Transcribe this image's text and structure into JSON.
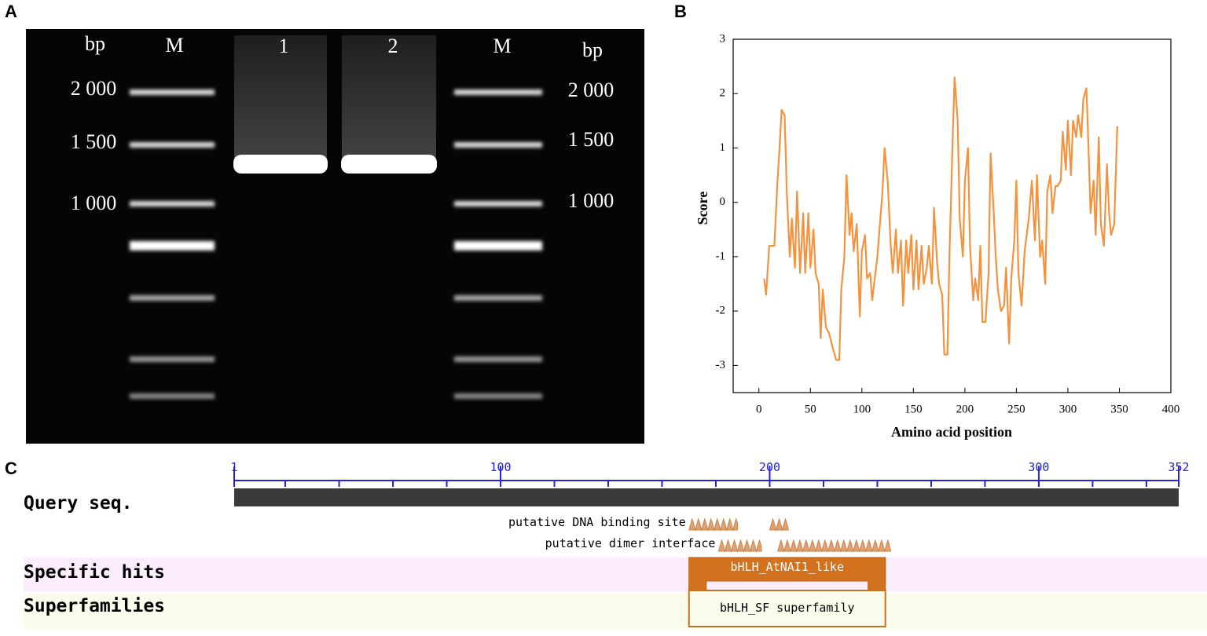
{
  "panel_labels": [
    "A",
    "B",
    "C"
  ],
  "gel": {
    "left_unit": "bp",
    "right_unit": "bp",
    "lanes": [
      "M",
      "1",
      "2",
      "M"
    ],
    "left_sizes": [
      "2 000",
      "1 500",
      "1 000"
    ],
    "right_sizes": [
      "2 000",
      "1 500",
      "1 000"
    ]
  },
  "chart_data": {
    "type": "line",
    "xlabel": "Amino acid position",
    "ylabel": "Score",
    "color": "#f5923e",
    "xlim": [
      -25,
      400
    ],
    "xticks": [
      0,
      50,
      100,
      150,
      200,
      250,
      300,
      350,
      400
    ],
    "ylim": [
      -3.5,
      3
    ],
    "yticks": [
      -3,
      -2,
      -1,
      0,
      1,
      2,
      3
    ],
    "x": [
      5,
      7,
      10,
      15,
      18,
      20,
      22,
      25,
      27,
      30,
      32,
      35,
      37,
      40,
      43,
      45,
      48,
      50,
      53,
      55,
      58,
      60,
      62,
      65,
      68,
      72,
      75,
      78,
      80,
      83,
      85,
      88,
      90,
      92,
      95,
      98,
      100,
      103,
      105,
      108,
      110,
      115,
      120,
      122,
      125,
      128,
      130,
      133,
      135,
      138,
      140,
      143,
      145,
      148,
      150,
      153,
      155,
      158,
      160,
      163,
      165,
      168,
      170,
      173,
      175,
      178,
      180,
      183,
      185,
      188,
      190,
      193,
      195,
      198,
      200,
      203,
      205,
      208,
      210,
      213,
      215,
      217,
      220,
      223,
      225,
      228,
      230,
      232,
      235,
      238,
      240,
      243,
      245,
      248,
      250,
      252,
      255,
      258,
      262,
      265,
      268,
      270,
      273,
      275,
      278,
      280,
      283,
      285,
      288,
      290,
      293,
      295,
      298,
      300,
      303,
      305,
      308,
      310,
      313,
      315,
      318,
      320,
      322,
      325,
      327,
      330,
      332,
      335,
      338,
      340,
      342,
      345,
      348
    ],
    "values": [
      -1.4,
      -1.7,
      -0.8,
      -0.8,
      0.4,
      1.0,
      1.7,
      1.6,
      0.2,
      -1.0,
      -0.3,
      -1.2,
      0.2,
      -1.3,
      -0.2,
      -1.3,
      -0.2,
      -1.2,
      -0.5,
      -1.3,
      -1.5,
      -2.5,
      -1.6,
      -2.3,
      -2.4,
      -2.7,
      -2.9,
      -2.9,
      -1.6,
      -1.0,
      0.5,
      -0.6,
      -0.2,
      -0.9,
      -0.4,
      -2.1,
      -0.9,
      -0.6,
      -1.4,
      -1.3,
      -1.8,
      -1.0,
      0.2,
      1.0,
      0.4,
      -0.8,
      -1.3,
      -0.5,
      -1.3,
      -0.7,
      -1.9,
      -0.7,
      -1.3,
      -0.6,
      -1.6,
      -0.7,
      -1.6,
      -0.8,
      -1.5,
      -1.2,
      -0.8,
      -1.5,
      -0.1,
      -1.1,
      -1.5,
      -1.7,
      -2.8,
      -2.8,
      -1.0,
      1.1,
      2.3,
      1.5,
      -0.3,
      -1.0,
      0.4,
      1.0,
      -0.8,
      -1.8,
      -1.4,
      -1.8,
      -0.8,
      -2.2,
      -2.2,
      -1.3,
      0.9,
      -0.2,
      -1.0,
      -1.6,
      -2.0,
      -1.9,
      -1.2,
      -2.6,
      -1.4,
      -0.7,
      0.4,
      -1.3,
      -1.9,
      -0.9,
      -0.3,
      0.4,
      -0.7,
      0.5,
      -1.0,
      -0.7,
      -1.5,
      0.2,
      0.5,
      -0.2,
      0.3,
      0.3,
      0.4,
      1.3,
      0.6,
      1.5,
      0.5,
      1.5,
      1.2,
      1.6,
      1.2,
      1.9,
      2.1,
      1.0,
      -0.2,
      0.4,
      -0.6,
      1.2,
      -0.4,
      -0.8,
      0.7,
      -0.2,
      -0.6,
      -0.4,
      1.4
    ]
  },
  "domain_map": {
    "range": [
      1,
      352
    ],
    "ticks": [
      1,
      100,
      200,
      300,
      352
    ],
    "minor_tick_step": 20,
    "query_label": "Query seq.",
    "features": [
      {
        "name": "putative DNA binding site",
        "ranges": [
          [
            170,
            188
          ],
          [
            200,
            207
          ]
        ]
      },
      {
        "name": "putative dimer interface",
        "ranges": [
          [
            181,
            197
          ],
          [
            203,
            245
          ]
        ]
      }
    ],
    "rows": [
      {
        "label": "Specific hits",
        "hit": "bHLH_AtNAI1_like",
        "start": 170,
        "end": 243
      },
      {
        "label": "Superfamilies",
        "hit": "bHLH_SF superfamily",
        "start": 170,
        "end": 243
      }
    ]
  }
}
